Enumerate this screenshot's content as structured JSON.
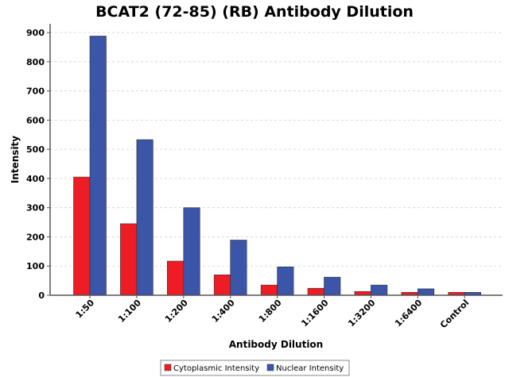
{
  "chart_data": {
    "type": "bar",
    "title": "BCAT2 (72-85) (RB) Antibody Dilution",
    "xlabel": "Antibody Dilution",
    "ylabel": "Intensity",
    "ylim": [
      0,
      930
    ],
    "yticks": [
      0,
      100,
      200,
      300,
      400,
      500,
      600,
      700,
      800,
      900
    ],
    "grid": true,
    "legend_position": "bottom",
    "categories": [
      "1:50",
      "1:100",
      "1:200",
      "1:400",
      "1:800",
      "1:1600",
      "1:3200",
      "1:6400",
      "Control"
    ],
    "series": [
      {
        "name": "Cytoplasmic Intensity",
        "color": "#ee1c24",
        "values": [
          405,
          245,
          117,
          70,
          35,
          24,
          13,
          10,
          10
        ]
      },
      {
        "name": "Nuclear Intensity",
        "color": "#3b55a8",
        "values": [
          888,
          533,
          300,
          189,
          97,
          62,
          35,
          22,
          10
        ]
      }
    ]
  }
}
